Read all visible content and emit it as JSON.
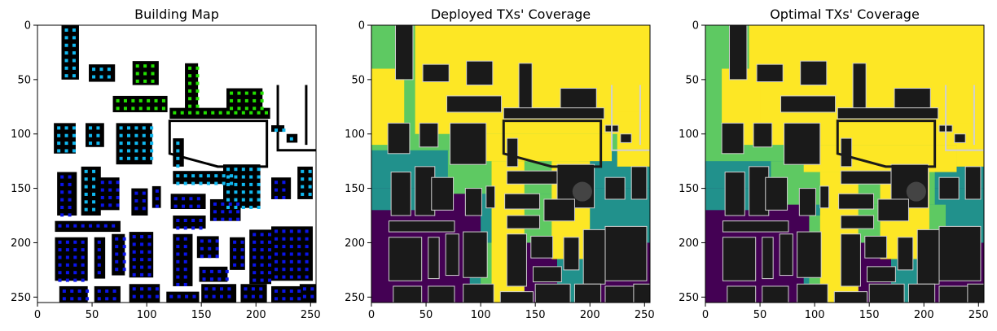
{
  "chart_data": [
    {
      "type": "heatmap",
      "title": "Building Map",
      "xlim": [
        0,
        255
      ],
      "ylim": [
        255,
        0
      ],
      "xticks": [
        0,
        50,
        100,
        150,
        200,
        250
      ],
      "yticks": [
        0,
        50,
        100,
        150,
        200,
        250
      ],
      "grid": false,
      "legend": "none",
      "colors": {
        "background": "#ffffff",
        "building": "#000000",
        "marker_green": "#22e000",
        "marker_cyan": "#10b8f0",
        "marker_blue": "#0a14e8"
      }
    },
    {
      "type": "heatmap",
      "title": "Deployed TXs' Coverage",
      "xlim": [
        0,
        255
      ],
      "ylim": [
        255,
        0
      ],
      "xticks": [
        0,
        50,
        100,
        150,
        200,
        250
      ],
      "yticks": [
        0,
        50,
        100,
        150,
        200,
        250
      ],
      "grid": false,
      "legend": "none",
      "colors": {
        "low": "#440154",
        "mid_low": "#21918c",
        "mid_high": "#5ec962",
        "high": "#fde725",
        "building": "#1a1a1a",
        "edge": "#d0d0d0"
      }
    },
    {
      "type": "heatmap",
      "title": "Optimal TXs' Coverage",
      "xlim": [
        0,
        255
      ],
      "ylim": [
        255,
        0
      ],
      "xticks": [
        0,
        50,
        100,
        150,
        200,
        250
      ],
      "yticks": [
        0,
        50,
        100,
        150,
        200,
        250
      ],
      "grid": false,
      "legend": "none",
      "colors": {
        "low": "#440154",
        "mid_low": "#21918c",
        "mid_high": "#5ec962",
        "high": "#fde725",
        "building": "#1a1a1a",
        "edge": "#d0d0d0"
      }
    }
  ]
}
